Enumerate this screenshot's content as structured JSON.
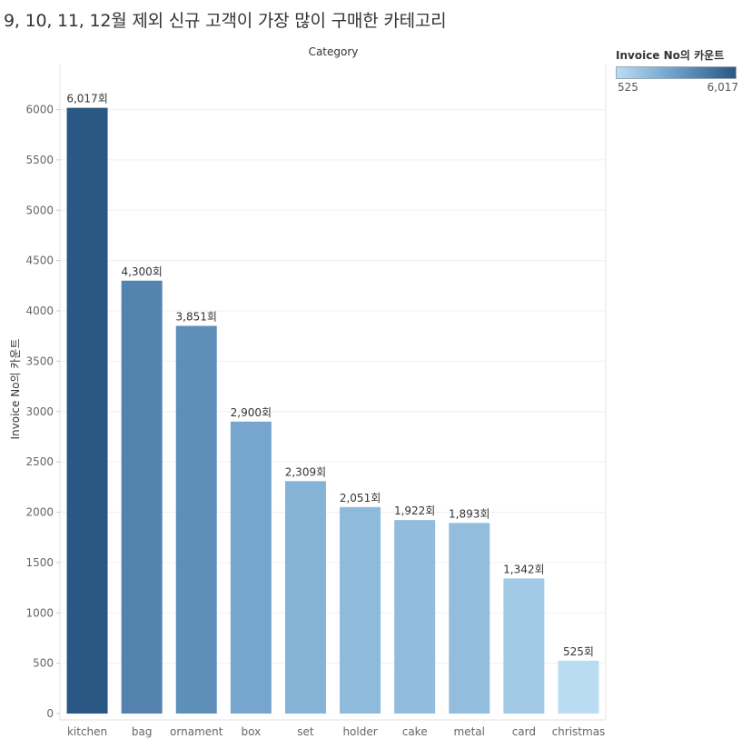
{
  "page": {
    "title": "9, 10, 11, 12월 제외 신규 고객이 가장 많이 구매한 카테고리"
  },
  "legend": {
    "title": "Invoice No의 카운트",
    "min_label": "525",
    "max_label": "6,017",
    "color_low": "#b9dcf2",
    "color_high": "#2a5783"
  },
  "chart_data": {
    "type": "bar",
    "title": "9, 10, 11, 12월 제외 신규 고객이 가장 많이 구매한 카테고리",
    "xlabel": "Category",
    "ylabel": "Invoice No의 카운트",
    "categories": [
      "kitchen",
      "bag",
      "ornament",
      "box",
      "set",
      "holder",
      "cake",
      "metal",
      "card",
      "christmas"
    ],
    "values": [
      6017,
      4300,
      3851,
      2900,
      2309,
      2051,
      1922,
      1893,
      1342,
      525
    ],
    "data_labels": [
      "6,017회",
      "4,300회",
      "3,851회",
      "2,900회",
      "2,309회",
      "2,051회",
      "1,922회",
      "1,893회",
      "1,342회",
      "525회"
    ],
    "yticks": [
      0,
      500,
      1000,
      1500,
      2000,
      2500,
      3000,
      3500,
      4000,
      4500,
      5000,
      5500,
      6000
    ],
    "ylim": [
      0,
      6400
    ],
    "grid": true,
    "legend_position": "top-right",
    "color_scale": "sequential blue by value"
  }
}
